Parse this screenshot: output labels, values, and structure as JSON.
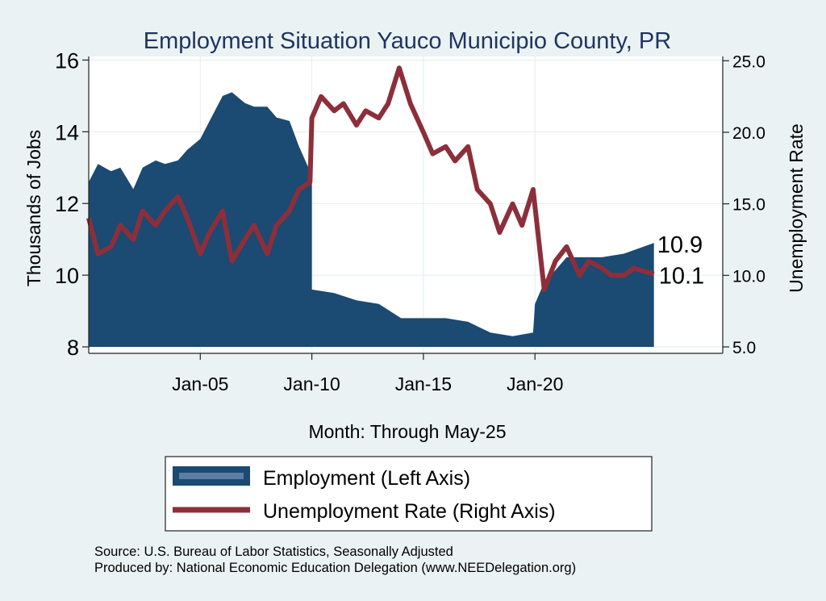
{
  "chart_data": {
    "type": "bar+line",
    "title": "Employment Situation Yauco Municipio  County, PR",
    "xlabel": "Month: Through May-25",
    "ylabel_left": "Thousands of Jobs",
    "ylabel_right": "Unemployment Rate",
    "x_ticks": [
      "Jan-05",
      "Jan-10",
      "Jan-15",
      "Jan-20"
    ],
    "x_tick_years": [
      2005,
      2010,
      2015,
      2020
    ],
    "x_range": [
      "2000-01",
      "2028-06"
    ],
    "y_left_ticks": [
      "8",
      "10",
      "12",
      "14",
      "16"
    ],
    "y_left_range": [
      8,
      16.1
    ],
    "y_right_ticks": [
      "5.0",
      "10.0",
      "15.0",
      "20.0",
      "25.0"
    ],
    "y_right_range": [
      5,
      25.3
    ],
    "grid": true,
    "legend_position": "bottom",
    "colors": {
      "employment": "#1b4a73",
      "unemployment": "#8c2f3a",
      "background": "#eaf2f3",
      "plot_bg": "#ffffff",
      "title": "#1f3560"
    },
    "end_labels": {
      "employment": "10.9",
      "unemployment": "10.1"
    },
    "series": [
      {
        "name": "Employment (Left Axis)",
        "kind": "bar",
        "points": [
          [
            "2000-01",
            12.6
          ],
          [
            "2000-06",
            13.1
          ],
          [
            "2001-01",
            12.9
          ],
          [
            "2001-06",
            13.0
          ],
          [
            "2002-01",
            12.4
          ],
          [
            "2002-06",
            13.0
          ],
          [
            "2003-01",
            13.2
          ],
          [
            "2003-06",
            13.1
          ],
          [
            "2004-01",
            13.2
          ],
          [
            "2004-06",
            13.5
          ],
          [
            "2005-01",
            13.8
          ],
          [
            "2005-06",
            14.3
          ],
          [
            "2006-01",
            15.0
          ],
          [
            "2006-06",
            15.1
          ],
          [
            "2007-01",
            14.8
          ],
          [
            "2007-06",
            14.7
          ],
          [
            "2008-01",
            14.7
          ],
          [
            "2008-06",
            14.4
          ],
          [
            "2009-01",
            14.3
          ],
          [
            "2009-06",
            13.6
          ],
          [
            "2009-12",
            12.9
          ],
          [
            "2010-01",
            9.6
          ],
          [
            "2011-01",
            9.5
          ],
          [
            "2012-01",
            9.3
          ],
          [
            "2013-01",
            9.2
          ],
          [
            "2014-01",
            8.8
          ],
          [
            "2015-01",
            8.8
          ],
          [
            "2016-01",
            8.8
          ],
          [
            "2017-01",
            8.7
          ],
          [
            "2018-01",
            8.4
          ],
          [
            "2019-01",
            8.3
          ],
          [
            "2019-12",
            8.4
          ],
          [
            "2020-01",
            9.2
          ],
          [
            "2020-06",
            9.8
          ],
          [
            "2021-01",
            10.2
          ],
          [
            "2021-06",
            10.5
          ],
          [
            "2022-01",
            10.5
          ],
          [
            "2023-01",
            10.5
          ],
          [
            "2024-01",
            10.6
          ],
          [
            "2025-05",
            10.9
          ]
        ]
      },
      {
        "name": "Unemployment Rate (Right Axis)",
        "kind": "line",
        "points": [
          [
            "2000-01",
            14.0
          ],
          [
            "2000-06",
            11.5
          ],
          [
            "2001-01",
            12.0
          ],
          [
            "2001-06",
            13.5
          ],
          [
            "2002-01",
            12.5
          ],
          [
            "2002-06",
            14.5
          ],
          [
            "2003-01",
            13.5
          ],
          [
            "2003-06",
            14.5
          ],
          [
            "2004-01",
            15.5
          ],
          [
            "2004-06",
            14.0
          ],
          [
            "2005-01",
            11.5
          ],
          [
            "2005-06",
            13.0
          ],
          [
            "2006-01",
            14.5
          ],
          [
            "2006-06",
            11.0
          ],
          [
            "2007-01",
            12.5
          ],
          [
            "2007-06",
            13.5
          ],
          [
            "2008-01",
            11.5
          ],
          [
            "2008-06",
            13.5
          ],
          [
            "2009-01",
            14.5
          ],
          [
            "2009-06",
            16.0
          ],
          [
            "2009-12",
            16.5
          ],
          [
            "2010-01",
            21.0
          ],
          [
            "2010-06",
            22.5
          ],
          [
            "2011-01",
            21.5
          ],
          [
            "2011-06",
            22.0
          ],
          [
            "2012-01",
            20.5
          ],
          [
            "2012-06",
            21.5
          ],
          [
            "2013-01",
            21.0
          ],
          [
            "2013-06",
            22.0
          ],
          [
            "2013-12",
            24.5
          ],
          [
            "2014-06",
            22.0
          ],
          [
            "2015-01",
            20.0
          ],
          [
            "2015-06",
            18.5
          ],
          [
            "2016-01",
            19.0
          ],
          [
            "2016-06",
            18.0
          ],
          [
            "2017-01",
            19.0
          ],
          [
            "2017-06",
            16.0
          ],
          [
            "2018-01",
            15.0
          ],
          [
            "2018-06",
            13.0
          ],
          [
            "2019-01",
            15.0
          ],
          [
            "2019-06",
            13.5
          ],
          [
            "2019-12",
            16.0
          ],
          [
            "2020-06",
            9.0
          ],
          [
            "2020-12",
            11.0
          ],
          [
            "2021-06",
            12.0
          ],
          [
            "2022-01",
            10.0
          ],
          [
            "2022-06",
            11.0
          ],
          [
            "2023-01",
            10.5
          ],
          [
            "2023-06",
            10.0
          ],
          [
            "2024-01",
            10.0
          ],
          [
            "2024-06",
            10.5
          ],
          [
            "2025-05",
            10.1
          ]
        ]
      }
    ]
  },
  "legend": {
    "employment_label": "Employment (Left Axis)",
    "unemployment_label": "Unemployment Rate (Right Axis)"
  },
  "source": {
    "line1": "Source: U.S. Bureau of Labor Statistics, Seasonally Adjusted",
    "line2": "Produced by: National Economic Education Delegation (www.NEEDelegation.org)"
  }
}
